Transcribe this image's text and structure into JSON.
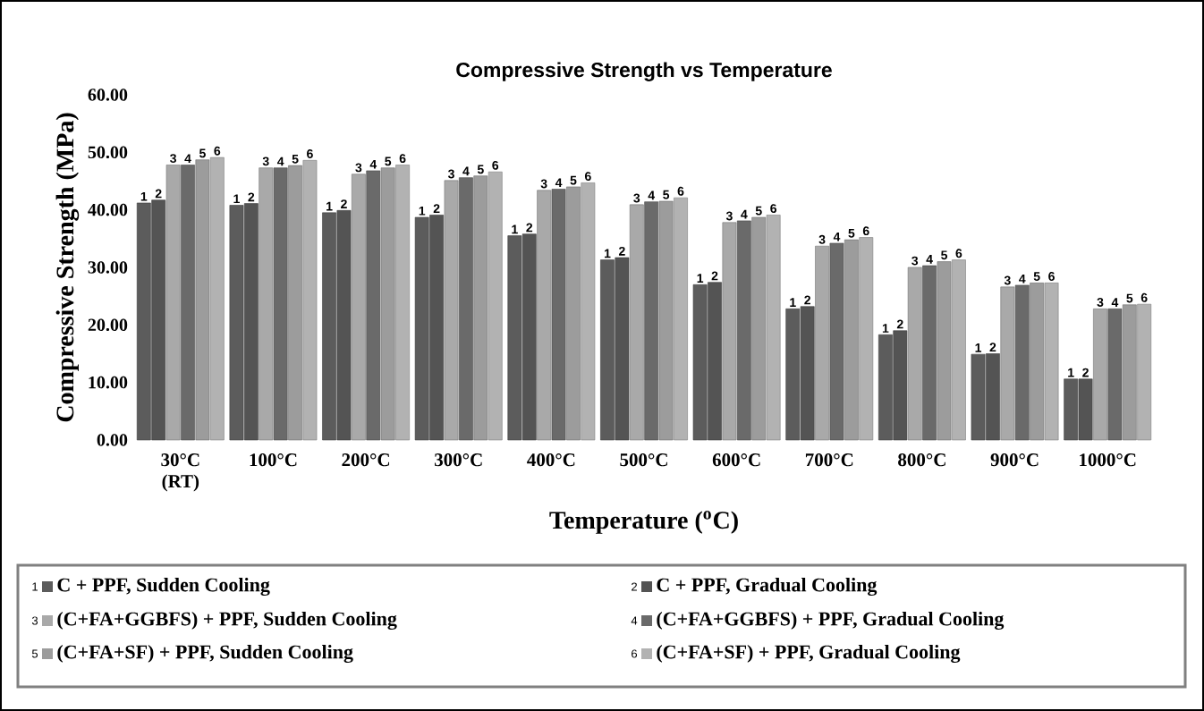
{
  "chart_data": {
    "type": "bar",
    "title": "Compressive Strength vs Temperature",
    "xlabel": "Temperature ($^{o}$C)",
    "ylabel": "Compressive Strength (MPa)",
    "categories": [
      "30°C (RT)",
      "100°C",
      "200°C",
      "300°C",
      "400°C",
      "500°C",
      "600°C",
      "700°C",
      "800°C",
      "900°C",
      "1000°C"
    ],
    "series": [
      {
        "name": "C + PPF, Sudden Cooling",
        "color": "#5c5c5c",
        "values": [
          41.2,
          40.8,
          39.5,
          38.7,
          35.5,
          31.3,
          27.0,
          22.8,
          18.3,
          14.9,
          10.6
        ]
      },
      {
        "name": "C + PPF, Gradual Cooling",
        "color": "#545454",
        "values": [
          41.7,
          41.1,
          39.9,
          39.1,
          35.8,
          31.7,
          27.4,
          23.2,
          19.0,
          15.0,
          10.6
        ]
      },
      {
        "name": "(C+FA+GGBFS) + PPF, Sudden Cooling",
        "color": "#a9a9a9",
        "values": [
          47.8,
          47.3,
          46.2,
          45.1,
          43.4,
          40.9,
          37.8,
          33.7,
          30.0,
          26.6,
          22.8
        ]
      },
      {
        "name": "(C+FA+GGBFS) + PPF, Gradual Cooling",
        "color": "#6a6a6a",
        "values": [
          47.8,
          47.3,
          46.8,
          45.6,
          43.6,
          41.4,
          38.1,
          34.2,
          30.3,
          26.9,
          22.8
        ]
      },
      {
        "name": "(C+FA+SF) + PPF, Sudden Cooling",
        "color": "#9c9c9c",
        "values": [
          48.7,
          47.7,
          47.3,
          45.9,
          44.0,
          41.5,
          38.7,
          34.8,
          31.0,
          27.3,
          23.5
        ]
      },
      {
        "name": "(C+FA+SF) + PPF, Gradual Cooling",
        "color": "#b2b2b2",
        "values": [
          49.1,
          48.6,
          47.8,
          46.6,
          44.7,
          42.1,
          39.1,
          35.2,
          31.3,
          27.3,
          23.6
        ]
      }
    ],
    "annotations": [
      "1",
      "1",
      "1",
      "1",
      "1",
      "1",
      "1",
      "1",
      "1",
      "1",
      "1",
      "2",
      "2",
      "2",
      "2",
      "2",
      "2",
      "2",
      "2",
      "2",
      "2",
      "2",
      "3",
      "3",
      "3",
      "3",
      "3",
      "3",
      "3",
      "3",
      "3",
      "3",
      "3",
      "4",
      "4",
      "4",
      "4",
      "4",
      "4",
      "4",
      "4",
      "4",
      "4",
      "4",
      "5",
      "5",
      "5",
      "5",
      "5",
      "5",
      "5",
      "5",
      "5",
      "5",
      "5",
      "6",
      "6",
      "6",
      "6",
      "6",
      "6",
      "6",
      "6",
      "6",
      "6",
      "6"
    ],
    "ylim": [
      0,
      60
    ],
    "yticks": [
      {
        "value": 0,
        "label": "0.00"
      },
      {
        "value": 10,
        "label": "10.00"
      },
      {
        "value": 20,
        "label": "20.00"
      },
      {
        "value": 30,
        "label": "30.00"
      },
      {
        "value": 40,
        "label": "40.00"
      },
      {
        "value": 50,
        "label": "50.00"
      },
      {
        "value": 60,
        "label": "60.00"
      }
    ],
    "legend": "bottom",
    "grid": false
  }
}
